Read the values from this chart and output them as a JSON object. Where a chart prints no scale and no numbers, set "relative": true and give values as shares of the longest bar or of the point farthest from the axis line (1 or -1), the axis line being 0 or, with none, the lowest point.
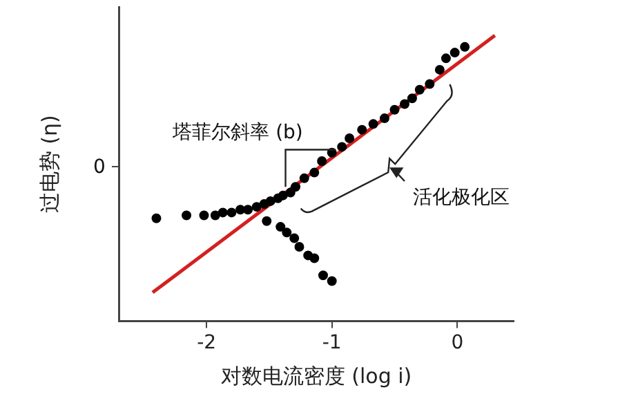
{
  "chart_data": {
    "type": "scatter",
    "xlabel": "对数电流密度 (log i)",
    "ylabel": "过电势 (η)",
    "relative": true,
    "xlim": [
      -2.7,
      0.45
    ],
    "xticks": [
      -2,
      -1,
      0
    ],
    "grid": false,
    "legend": false,
    "annotations": [
      "塔菲尔斜率 (b)",
      "活化极化区",
      "0"
    ],
    "series": [
      {
        "type": "scatter",
        "color": "#000000",
        "marker": "circle",
        "x": [
          -2.4,
          -2.16,
          -2.02,
          -1.93,
          -1.87,
          -1.8,
          -1.73,
          -1.67,
          -1.6,
          -1.54,
          -1.49,
          -1.43,
          -1.39,
          -1.33,
          -1.29,
          -1.22,
          -1.14,
          -1.08,
          -1.0,
          -0.92,
          -0.86,
          -0.76,
          -0.67,
          -0.58,
          -0.5,
          -0.42,
          -0.36,
          -0.3,
          -0.22,
          -0.14,
          -0.09,
          -0.02,
          0.06
        ],
        "values": [
          0.36,
          0.37,
          0.37,
          0.37,
          0.38,
          0.38,
          0.39,
          0.39,
          0.4,
          0.41,
          0.42,
          0.43,
          0.44,
          0.45,
          0.47,
          0.5,
          0.52,
          0.56,
          0.59,
          0.61,
          0.64,
          0.67,
          0.69,
          0.71,
          0.74,
          0.76,
          0.78,
          0.81,
          0.83,
          0.88,
          0.92,
          0.94,
          0.96
        ]
      },
      {
        "type": "scatter",
        "color": "#000000",
        "marker": "circle",
        "x": [
          -1.52,
          -1.41,
          -1.36,
          -1.3,
          -1.26,
          -1.19,
          -1.14,
          -1.07,
          -1.0
        ],
        "values": [
          0.35,
          0.33,
          0.31,
          0.29,
          0.26,
          0.23,
          0.22,
          0.16,
          0.14
        ]
      },
      {
        "type": "line",
        "color": "#d42020",
        "marker": "none",
        "line_style": "solid",
        "x": [
          -2.43,
          0.3
        ],
        "values": [
          0.1,
          1.0
        ]
      }
    ]
  }
}
